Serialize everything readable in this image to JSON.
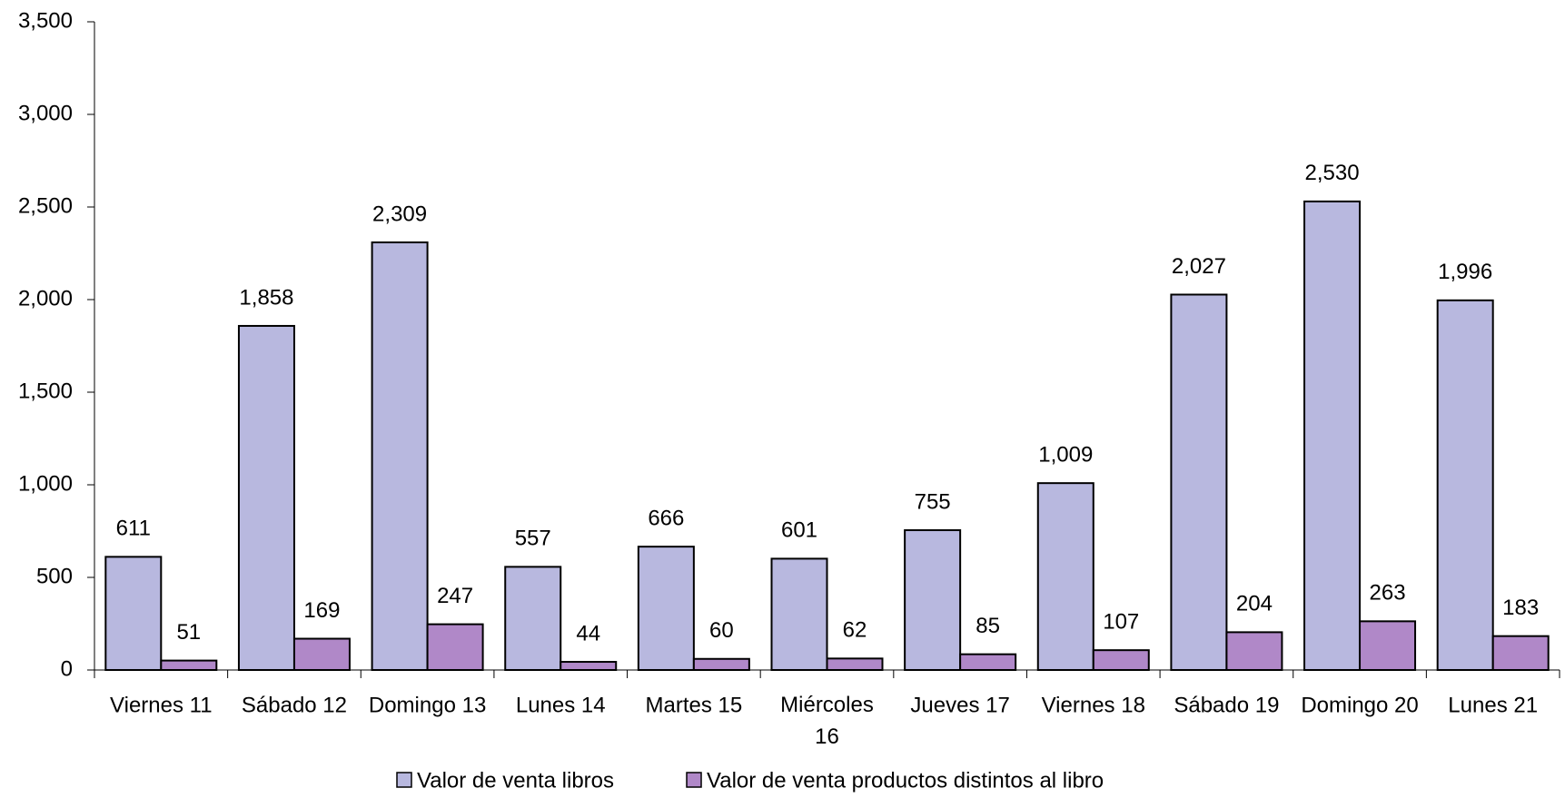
{
  "chart_data": {
    "type": "bar",
    "categories": [
      "Viernes 11",
      "Sábado 12",
      "Domingo 13",
      "Lunes 14",
      "Martes 15",
      "Miércoles 16",
      "Jueves 17",
      "Viernes 18",
      "Sábado 19",
      "Domingo 20",
      "Lunes 21"
    ],
    "series": [
      {
        "name": "Valor de venta libros",
        "color": "#b8b8df",
        "values": [
          611,
          1858,
          2309,
          557,
          666,
          601,
          755,
          1009,
          2027,
          2530,
          1996
        ],
        "value_labels": [
          "611",
          "1,858",
          "2,309",
          "557",
          "666",
          "601",
          "755",
          "1,009",
          "2,027",
          "2,530",
          "1,996"
        ]
      },
      {
        "name": "Valor de venta productos distintos al libro",
        "color": "#b088c8",
        "values": [
          51,
          169,
          247,
          44,
          60,
          62,
          85,
          107,
          204,
          263,
          183
        ],
        "value_labels": [
          "51",
          "169",
          "247",
          "44",
          "60",
          "62",
          "85",
          "107",
          "204",
          "263",
          "183"
        ]
      }
    ],
    "ylim": [
      0,
      3500
    ],
    "yticks": [
      0,
      500,
      {
        "value": 1000,
        "label": "1,000"
      },
      {
        "value": 1500,
        "label": "1,500"
      },
      {
        "value": 2000,
        "label": "2,000"
      },
      {
        "value": 2500,
        "label": "2,500"
      },
      {
        "value": 3000,
        "label": "3,000"
      },
      {
        "value": 3500,
        "label": "3,500"
      }
    ],
    "grid": false,
    "legend": "bottom"
  }
}
